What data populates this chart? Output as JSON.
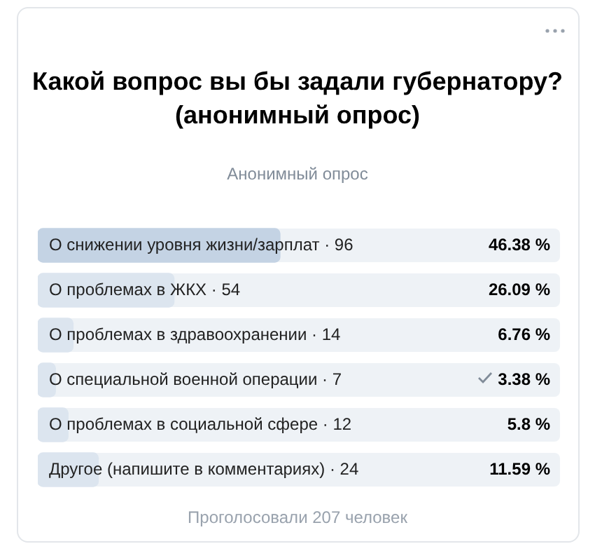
{
  "chart_data": {
    "type": "bar",
    "orientation": "horizontal",
    "title": "Какой вопрос вы бы задали губернатору? (анонимный опрос)",
    "subtitle": "Анонимный опрос",
    "categories": [
      "О снижении уровня жизни/зарплат · 96",
      "О проблемах в ЖКХ · 54",
      "О проблемах в здравоохранении · 14",
      "О специальной военной операции · 7",
      "О проблемах в социальной сфере · 12",
      "Другое (напишите в комментариях) · 24"
    ],
    "values": [
      46.38,
      26.09,
      6.76,
      3.38,
      5.8,
      11.59
    ],
    "colors": [
      "#c4d3e4",
      "#dce5ef",
      "#dce5ef",
      "#dce5ef",
      "#dce5ef",
      "#dce5ef"
    ],
    "value_labels": [
      "46.38 %",
      "26.09 %",
      "6.76 %",
      "3.38 %",
      "5.8 %",
      "11.59 %"
    ],
    "xlim": [
      0,
      100
    ],
    "annotations": [
      "Проголосовали 207 человек"
    ]
  }
}
